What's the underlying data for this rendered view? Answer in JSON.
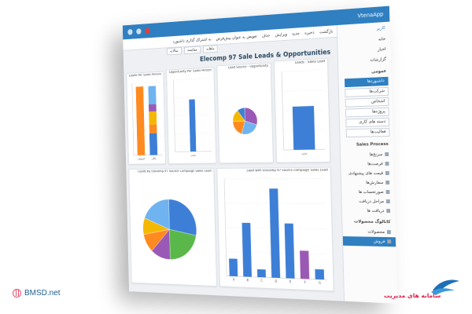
{
  "app": {
    "title": "VtenaApp",
    "heading": "Elecomp 97 Sale Leads & Opportunities",
    "toolbar": [
      "بازگشت",
      "ذخیره",
      "جدید",
      "ویرایش",
      "حذف",
      "تعویض به عنوان پیش‌فرض",
      "به اشتراک گذاری داشبورد"
    ],
    "tabs": [
      "ماهانه",
      "مقایسه",
      "سالانه"
    ]
  },
  "sidebar": {
    "user": "کاربر",
    "nav": [
      "خانه",
      "اخبار",
      "گزارشات"
    ],
    "section_general": "عمومی",
    "subs": [
      "داشبوردها",
      "شرکت‌ها",
      "اشخاص",
      "پروژه‌ها",
      "دسته های کاری",
      "فعالیت‌ها"
    ],
    "section_sales": "Sales Process",
    "sales_items": [
      "سرنخ‌ها",
      "فرصت‌ها",
      "قیمت های پیشنهادی",
      "سفارش‌ها",
      "صورتحساب ها",
      "مراحل دریافت",
      "دریافت ها"
    ],
    "section_product": "کاتالوگ محصولات",
    "product_items": [
      "محصولات",
      "فروش"
    ]
  },
  "charts": {
    "c1": {
      "title": "Leads Per Sales Person",
      "cats": [
        "فروش",
        "مالی"
      ],
      "stacks": [
        [
          95
        ],
        [
          30,
          12,
          18,
          10,
          25
        ]
      ]
    },
    "c2": {
      "title": "Opportunity Per Sales Person",
      "cats": [
        "مدیر"
      ],
      "values": [
        72
      ]
    },
    "c3": {
      "title": "Lead Source - Opportunity",
      "slices": [
        30,
        25,
        20,
        15,
        10
      ]
    },
    "c4": {
      "title": "Leads - Sales Lead",
      "cats": [
        "مدیر"
      ],
      "values": [
        55
      ]
    },
    "c5": {
      "title": "Leads by Elecomp 97 Source Campaign Sales Lead",
      "slices": [
        28,
        22,
        12,
        10,
        9,
        19
      ]
    },
    "c6": {
      "title": "Lead with Elecomp 97 source campaign Sales Lead",
      "cats": [
        "A",
        "B",
        "C",
        "D",
        "E",
        "F",
        "G"
      ],
      "values": [
        18,
        55,
        8,
        90,
        55,
        28,
        10
      ]
    }
  },
  "colors": {
    "blue": "#3d7fd6",
    "orange": "#ff8a1f",
    "yellow": "#f5b800",
    "purple": "#9b59b6",
    "green": "#5ab84a",
    "lightblue": "#6fb3f0",
    "primary": "#2f7fc1"
  },
  "brand": {
    "left": "BMSD.net",
    "right": "سامانه های مدیریت"
  }
}
